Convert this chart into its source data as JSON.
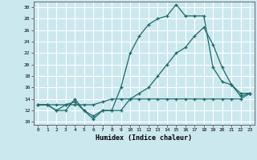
{
  "title": "",
  "xlabel": "Humidex (Indice chaleur)",
  "bg_color": "#cce8ef",
  "grid_color": "#ffffff",
  "line_color": "#1a6b6a",
  "xlim": [
    -0.5,
    23.5
  ],
  "ylim": [
    9.5,
    31.0
  ],
  "yticks": [
    10,
    12,
    14,
    16,
    18,
    20,
    22,
    24,
    26,
    28,
    30
  ],
  "xticks": [
    0,
    1,
    2,
    3,
    4,
    5,
    6,
    7,
    8,
    9,
    10,
    11,
    12,
    13,
    14,
    15,
    16,
    17,
    18,
    19,
    20,
    21,
    22,
    23
  ],
  "series1_x": [
    0,
    1,
    2,
    3,
    4,
    5,
    6,
    7,
    8,
    9,
    10,
    11,
    12,
    13,
    14,
    15,
    16,
    17,
    18,
    19,
    20,
    21,
    22,
    23
  ],
  "series1_y": [
    13,
    13,
    12,
    12,
    14,
    12,
    10.5,
    12,
    12,
    16,
    22,
    25,
    27,
    28,
    28.5,
    30.5,
    28.5,
    28.5,
    28.5,
    19.5,
    17,
    16.5,
    15,
    15
  ],
  "series2_x": [
    0,
    1,
    2,
    3,
    4,
    5,
    6,
    7,
    8,
    9,
    10,
    11,
    12,
    13,
    14,
    15,
    16,
    17,
    18,
    19,
    20,
    21,
    22,
    23
  ],
  "series2_y": [
    13,
    13,
    13,
    13,
    13,
    13,
    13,
    13.5,
    14,
    14,
    14,
    14,
    14,
    14,
    14,
    14,
    14,
    14,
    14,
    14,
    14,
    14,
    14,
    15
  ],
  "series3_x": [
    0,
    1,
    2,
    3,
    4,
    5,
    6,
    7,
    8,
    9,
    10,
    11,
    12,
    13,
    14,
    15,
    16,
    17,
    18,
    19,
    20,
    21,
    22,
    23
  ],
  "series3_y": [
    13,
    13,
    12,
    13,
    13.5,
    12,
    11,
    12,
    12,
    12,
    14,
    15,
    16,
    18,
    20,
    22,
    23,
    25,
    26.5,
    23.5,
    19.5,
    16.5,
    14.5,
    15
  ]
}
